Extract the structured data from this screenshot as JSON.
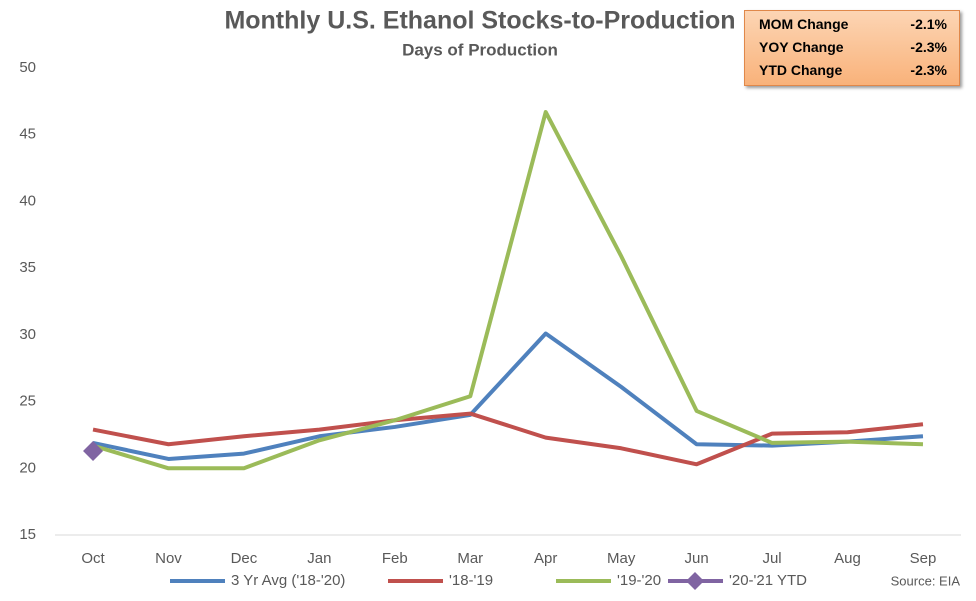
{
  "chart_data": {
    "type": "line",
    "title": "Monthly U.S. Ethanol Stocks-to-Production",
    "subtitle": "Days of Production",
    "categories": [
      "Oct",
      "Nov",
      "Dec",
      "Jan",
      "Feb",
      "Mar",
      "Apr",
      "May",
      "Jun",
      "Jul",
      "Aug",
      "Sep"
    ],
    "series": [
      {
        "name": "3 Yr Avg ('18-'20)",
        "color": "#4f81bd",
        "values": [
          21.9,
          20.7,
          21.1,
          22.4,
          23.1,
          24.0,
          30.1,
          26.1,
          21.8,
          21.7,
          22.0,
          22.4
        ]
      },
      {
        "name": "'18-'19",
        "color": "#c0504d",
        "values": [
          22.9,
          21.8,
          22.4,
          22.9,
          23.6,
          24.1,
          22.3,
          21.5,
          20.3,
          22.6,
          22.7,
          23.3
        ]
      },
      {
        "name": "'19-'20",
        "color": "#9bbb59",
        "values": [
          21.7,
          20.0,
          20.0,
          22.1,
          23.6,
          25.4,
          46.7,
          35.9,
          24.3,
          21.9,
          22.0,
          21.8
        ]
      },
      {
        "name": "'20-'21 YTD",
        "color": "#8064a2",
        "marker": "diamond",
        "values": [
          21.3,
          null,
          null,
          null,
          null,
          null,
          null,
          null,
          null,
          null,
          null,
          null
        ]
      }
    ],
    "ylim": [
      15,
      50
    ],
    "yticks": [
      15,
      20,
      25,
      30,
      35,
      40,
      45,
      50
    ],
    "grid": false,
    "legend": "bottom",
    "source": "Source: EIA"
  },
  "info_box": {
    "rows": [
      [
        "MOM Change",
        "-2.1%"
      ],
      [
        "YOY Change",
        "-2.3%"
      ],
      [
        "YTD Change",
        "-2.3%"
      ]
    ]
  }
}
